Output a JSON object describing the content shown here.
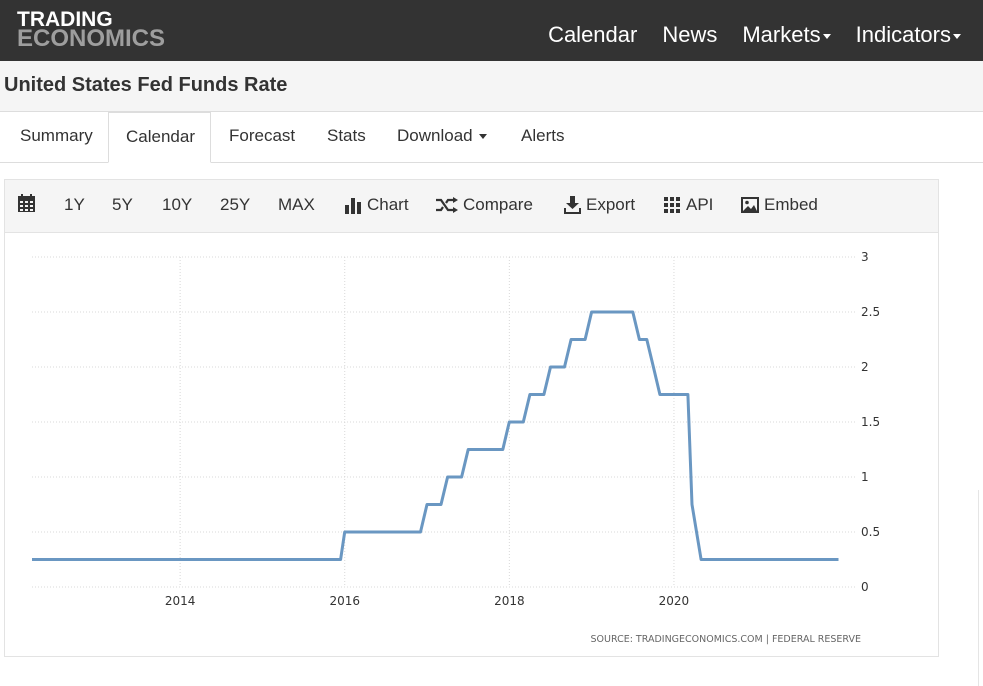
{
  "header": {
    "logo_line1": "TRADING",
    "logo_line2": "ECONOMICS",
    "nav": [
      {
        "label": "Calendar"
      },
      {
        "label": "News"
      },
      {
        "label": "Markets"
      },
      {
        "label": "Indicators"
      }
    ]
  },
  "page": {
    "title": "United States Fed Funds Rate"
  },
  "tabs": [
    {
      "label": "Summary"
    },
    {
      "label": "Calendar"
    },
    {
      "label": "Forecast"
    },
    {
      "label": "Stats"
    },
    {
      "label": "Download"
    },
    {
      "label": "Alerts"
    }
  ],
  "toolbar": {
    "ranges": [
      "1Y",
      "5Y",
      "10Y",
      "25Y",
      "MAX"
    ],
    "chart_label": "Chart",
    "compare_label": "Compare",
    "export_label": "Export",
    "api_label": "API",
    "embed_label": "Embed"
  },
  "colors": {
    "line": "#6a97c2",
    "topbar": "#333333"
  },
  "chart_data": {
    "type": "line",
    "title": "",
    "xlabel": "",
    "ylabel": "",
    "ylim": [
      0,
      3
    ],
    "yticks": [
      0,
      0.5,
      1,
      1.5,
      2,
      2.5,
      3
    ],
    "ytick_labels": [
      "0",
      "0.5",
      "1",
      "1.5",
      "2",
      "2.5",
      "3"
    ],
    "xticks": [
      2014,
      2016,
      2018,
      2020
    ],
    "xlim": [
      2012.2,
      2022.2
    ],
    "grid": true,
    "source": "SOURCE:  TRADINGECONOMICS.COM  |  FEDERAL  RESERVE",
    "series": [
      {
        "x": [
          2012.2,
          2015.95,
          2016.0,
          2016.92,
          2017.0,
          2017.17,
          2017.25,
          2017.42,
          2017.5,
          2017.92,
          2018.0,
          2018.17,
          2018.25,
          2018.42,
          2018.5,
          2018.67,
          2018.75,
          2018.92,
          2019.0,
          2019.5,
          2019.58,
          2019.67,
          2019.75,
          2019.83,
          2020.17,
          2020.22,
          2020.33,
          2022.0
        ],
        "y": [
          0.25,
          0.25,
          0.5,
          0.5,
          0.75,
          0.75,
          1.0,
          1.0,
          1.25,
          1.25,
          1.5,
          1.5,
          1.75,
          1.75,
          2.0,
          2.0,
          2.25,
          2.25,
          2.5,
          2.5,
          2.25,
          2.25,
          2.0,
          1.75,
          1.75,
          0.75,
          0.25,
          0.25
        ]
      }
    ]
  }
}
